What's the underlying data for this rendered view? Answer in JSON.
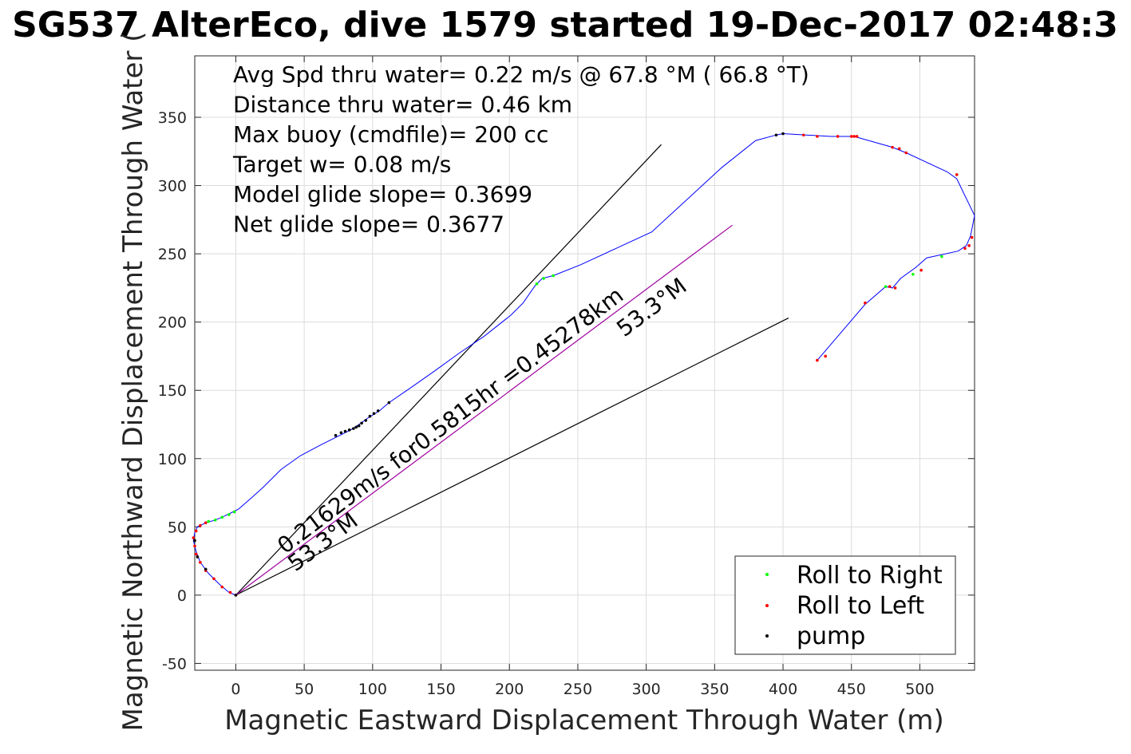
{
  "chart_data": {
    "type": "scatter",
    "title": "SG537 AlterEco, dive 1579 started 19-Dec-2017 02:48:3",
    "xlabel": "Magnetic Eastward Displacement Through Water (m)",
    "ylabel": "Magnetic Northward Displacement Through Water (",
    "xlim": [
      -30,
      540
    ],
    "ylim": [
      -55,
      395
    ],
    "xticks": [
      0,
      50,
      100,
      150,
      200,
      250,
      300,
      350,
      400,
      450,
      500
    ],
    "yticks": [
      -50,
      0,
      50,
      100,
      150,
      200,
      250,
      300,
      350
    ],
    "xtick_labels": [
      "0",
      "50",
      "100",
      "150",
      "200",
      "250",
      "300",
      "350",
      "400",
      "450",
      "500"
    ],
    "ytick_labels": [
      "-50",
      "0",
      "50",
      "100",
      "150",
      "200",
      "250",
      "300",
      "350"
    ],
    "grid": true,
    "legend_position": "bottom-right",
    "annotations": [
      "Avg Spd thru water=  0.22 m/s @  67.8 °M ( 66.8 °T)",
      "Distance thru water=  0.46 km",
      "Max buoy (cmdfile)= 200 cc",
      "Target w= 0.08 m/s",
      "Model glide slope= 0.3699",
      "Net glide slope= 0.3677"
    ],
    "rotated_labels": {
      "speed": "0.21629m/s for0.5815hr =0.45278km",
      "heading_upper": "53.3°M",
      "heading_lower": "53.3°M"
    },
    "legend": [
      {
        "label": "Roll to Right",
        "color": "#00ff00"
      },
      {
        "label": "Roll to Left",
        "color": "#ff0000"
      },
      {
        "label": "pump",
        "color": "#000000"
      }
    ],
    "track": {
      "name": "",
      "color": "#0000ff",
      "points": [
        [
          0,
          0
        ],
        [
          -5,
          2
        ],
        [
          -12,
          8
        ],
        [
          -20,
          16
        ],
        [
          -26,
          24
        ],
        [
          -29,
          32
        ],
        [
          -31,
          40
        ],
        [
          -30,
          46
        ],
        [
          -28,
          50
        ],
        [
          -22,
          53
        ],
        [
          -15,
          55
        ],
        [
          -8,
          58
        ],
        [
          -2,
          61
        ],
        [
          2,
          63
        ],
        [
          10,
          70
        ],
        [
          20,
          79
        ],
        [
          33,
          92
        ],
        [
          47,
          102
        ],
        [
          62,
          110
        ],
        [
          76,
          117
        ],
        [
          84,
          121
        ],
        [
          90,
          125
        ],
        [
          97,
          130
        ],
        [
          105,
          135
        ],
        [
          112,
          141
        ],
        [
          128,
          152
        ],
        [
          145,
          164
        ],
        [
          163,
          177
        ],
        [
          182,
          190
        ],
        [
          201,
          205
        ],
        [
          210,
          214
        ],
        [
          219,
          227
        ],
        [
          224,
          232
        ],
        [
          232,
          234
        ],
        [
          252,
          242
        ],
        [
          278,
          254
        ],
        [
          304,
          266
        ],
        [
          330,
          290
        ],
        [
          355,
          313
        ],
        [
          380,
          333
        ],
        [
          395,
          337
        ],
        [
          400,
          338
        ],
        [
          417,
          337
        ],
        [
          435,
          336
        ],
        [
          452,
          336
        ],
        [
          480,
          328
        ],
        [
          490,
          324
        ],
        [
          520,
          310
        ],
        [
          527,
          305
        ],
        [
          540,
          278
        ],
        [
          537,
          263
        ],
        [
          534,
          256
        ],
        [
          528,
          252
        ],
        [
          505,
          247
        ],
        [
          497,
          240
        ],
        [
          486,
          232
        ],
        [
          480,
          225
        ],
        [
          475,
          226
        ],
        [
          460,
          213
        ],
        [
          443,
          193
        ],
        [
          425,
          172
        ]
      ]
    },
    "reference_lines": [
      {
        "from": [
          0,
          0
        ],
        "to": [
          311,
          330
        ],
        "color": "#000000"
      },
      {
        "from": [
          0,
          0
        ],
        "to": [
          404,
          203
        ],
        "color": "#000000"
      },
      {
        "from": [
          0,
          0
        ],
        "to": [
          363,
          271
        ],
        "color": "#a000a0"
      }
    ],
    "roll_right_points": [
      [
        -1,
        61
      ],
      [
        -5,
        59
      ],
      [
        -10,
        57
      ],
      [
        -15,
        55
      ],
      [
        -20,
        54
      ],
      [
        220,
        228
      ],
      [
        225,
        232
      ],
      [
        232,
        234
      ],
      [
        475,
        226
      ],
      [
        495,
        235
      ],
      [
        516,
        248
      ],
      [
        527,
        308
      ]
    ],
    "roll_left_points": [
      [
        -4,
        2
      ],
      [
        -10,
        6
      ],
      [
        -16,
        12
      ],
      [
        -22,
        18
      ],
      [
        -26,
        24
      ],
      [
        -29,
        30
      ],
      [
        -30,
        36
      ],
      [
        -31,
        42
      ],
      [
        -29,
        47
      ],
      [
        -26,
        51
      ],
      [
        -22,
        53
      ],
      [
        0,
        0
      ],
      [
        425,
        172
      ],
      [
        431,
        175
      ],
      [
        460,
        214
      ],
      [
        478,
        226
      ],
      [
        482,
        225
      ],
      [
        501,
        238
      ],
      [
        527,
        308
      ],
      [
        533,
        254
      ],
      [
        536,
        256
      ],
      [
        538,
        262
      ],
      [
        452,
        336
      ],
      [
        480,
        328
      ],
      [
        485,
        327
      ],
      [
        490,
        324
      ],
      [
        415,
        337
      ],
      [
        425,
        336
      ],
      [
        440,
        336
      ],
      [
        450,
        336
      ],
      [
        454,
        336
      ]
    ],
    "pump_points": [
      [
        73,
        117
      ],
      [
        77,
        119
      ],
      [
        80,
        120
      ],
      [
        83,
        121
      ],
      [
        86,
        122
      ],
      [
        88,
        123
      ],
      [
        90,
        124
      ],
      [
        92,
        126
      ],
      [
        95,
        128
      ],
      [
        98,
        131
      ],
      [
        101,
        133
      ],
      [
        104,
        135
      ],
      [
        112,
        141
      ],
      [
        395,
        337
      ],
      [
        400,
        338
      ],
      [
        -28,
        28
      ],
      [
        -30,
        40
      ],
      [
        -22,
        19
      ],
      [
        0,
        0
      ]
    ]
  }
}
